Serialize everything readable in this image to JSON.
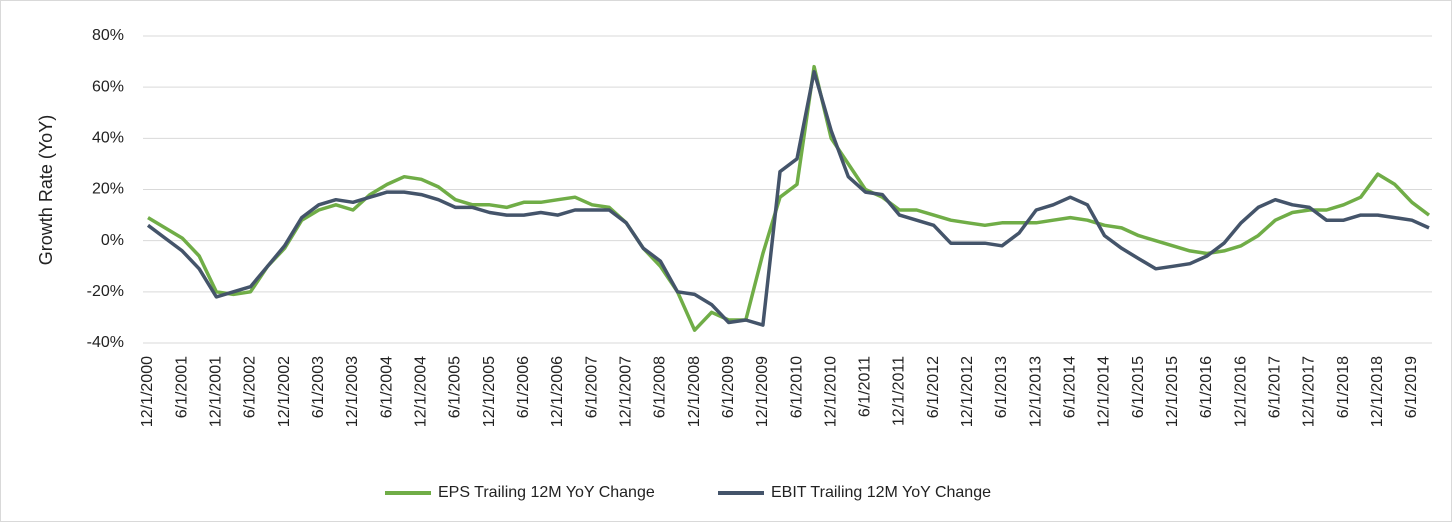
{
  "chart_data": {
    "type": "line",
    "y_label": "Growth Rate (YoY)",
    "categories": [
      "12/1/2000",
      null,
      "6/1/2001",
      null,
      "12/1/2001",
      null,
      "6/1/2002",
      null,
      "12/1/2002",
      null,
      "6/1/2003",
      null,
      "12/1/2003",
      null,
      "6/1/2004",
      null,
      "12/1/2004",
      null,
      "6/1/2005",
      null,
      "12/1/2005",
      null,
      "6/1/2006",
      null,
      "12/1/2006",
      null,
      "6/1/2007",
      null,
      "12/1/2007",
      null,
      "6/1/2008",
      null,
      "12/1/2008",
      null,
      "6/1/2009",
      null,
      "12/1/2009",
      null,
      "6/1/2010",
      null,
      "12/1/2010",
      null,
      "6/1/2011",
      null,
      "12/1/2011",
      null,
      "6/1/2012",
      null,
      "12/1/2012",
      null,
      "6/1/2013",
      null,
      "12/1/2013",
      null,
      "6/1/2014",
      null,
      "12/1/2014",
      null,
      "6/1/2015",
      null,
      "12/1/2015",
      null,
      "6/1/2016",
      null,
      "12/1/2016",
      null,
      "6/1/2017",
      null,
      "12/1/2017",
      null,
      "6/1/2018",
      null,
      "12/1/2018",
      null,
      "6/1/2019",
      null
    ],
    "series": [
      {
        "name": "EPS Trailing 12M YoY Change",
        "color": "#70ad47",
        "values": [
          9,
          5,
          1,
          -6,
          -20,
          -21,
          -20,
          -10,
          -3,
          8,
          12,
          14,
          12,
          18,
          22,
          25,
          24,
          21,
          16,
          14,
          14,
          13,
          15,
          15,
          16,
          17,
          14,
          13,
          7,
          -3,
          -10,
          -20,
          -35,
          -28,
          -31,
          -31,
          -5,
          17,
          22,
          68,
          40,
          30,
          20,
          17,
          12,
          12,
          10,
          8,
          7,
          6,
          7,
          7,
          7,
          8,
          9,
          8,
          6,
          5,
          2,
          0,
          -2,
          -4,
          -5,
          -4,
          -2,
          2,
          8,
          11,
          12,
          12,
          14,
          17,
          26,
          22,
          15,
          10
        ]
      },
      {
        "name": "EBIT Trailing 12M YoY Change",
        "color": "#44546a",
        "values": [
          6,
          1,
          -4,
          -11,
          -22,
          -20,
          -18,
          -10,
          -2,
          9,
          14,
          16,
          15,
          17,
          19,
          19,
          18,
          16,
          13,
          13,
          11,
          10,
          10,
          11,
          10,
          12,
          12,
          12,
          7,
          -3,
          -8,
          -20,
          -21,
          -25,
          -32,
          -31,
          -33,
          27,
          32,
          66,
          43,
          25,
          19,
          18,
          10,
          8,
          6,
          -1,
          -1,
          -1,
          -2,
          3,
          12,
          14,
          17,
          14,
          2,
          -3,
          -7,
          -11,
          -10,
          -9,
          -6,
          -1,
          7,
          13,
          16,
          14,
          13,
          8,
          8,
          10,
          10,
          9,
          8,
          5
        ]
      }
    ],
    "ylim": [
      -40,
      80
    ],
    "yticks": [
      {
        "value": -40,
        "label": "-40%"
      },
      {
        "value": -20,
        "label": "-20%"
      },
      {
        "value": 0,
        "label": "0%"
      },
      {
        "value": 20,
        "label": "20%"
      },
      {
        "value": 40,
        "label": "40%"
      },
      {
        "value": 60,
        "label": "60%"
      },
      {
        "value": 80,
        "label": "80%"
      }
    ],
    "grid": true,
    "legend": "bottom"
  }
}
